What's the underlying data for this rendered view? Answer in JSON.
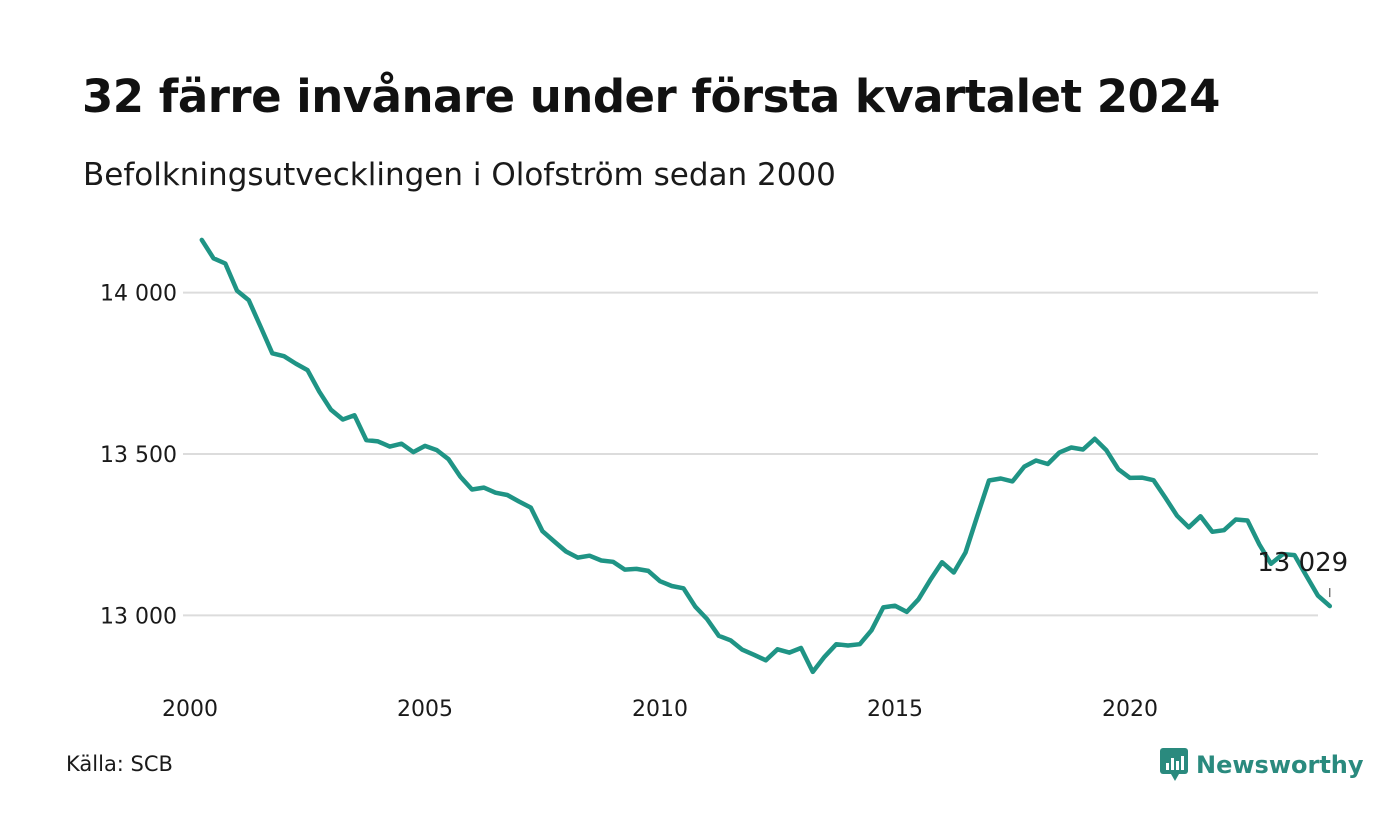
{
  "title": "32 färre invånare under första kvartalet 2024",
  "subtitle": "Befolkningsutvecklingen i Olofström sedan 2000",
  "source": "Källa: SCB",
  "brand": {
    "name": "Newsworthy",
    "icon": "newsworthy-logo-icon",
    "color": "#2a8a7e"
  },
  "chart_data": {
    "type": "line",
    "title": "32 färre invånare under första kvartalet 2024",
    "subtitle": "Befolkningsutvecklingen i Olofström sedan 2000",
    "xlabel": "",
    "ylabel": "",
    "xlim": [
      2000,
      2024
    ],
    "ylim": [
      12800,
      14200
    ],
    "x_ticks": [
      2000,
      2005,
      2010,
      2015,
      2020
    ],
    "x_tick_labels": [
      "2000",
      "2005",
      "2010",
      "2015",
      "2020"
    ],
    "y_ticks": [
      13000,
      13500,
      14000
    ],
    "y_tick_labels": [
      "13 000",
      "13 500",
      "14 000"
    ],
    "grid": "horizontal",
    "legend": "none",
    "line_color": "#1f9485",
    "end_label": "13 029",
    "series": [
      {
        "x": [
          2000.25,
          2000.5,
          2000.75,
          2001.0,
          2001.25,
          2001.5,
          2001.75,
          2002.0,
          2002.25,
          2002.5,
          2002.75,
          2003.0,
          2003.25,
          2003.5,
          2003.75,
          2004.0,
          2004.25,
          2004.5,
          2004.75,
          2005.0,
          2005.25,
          2005.5,
          2005.75,
          2006.0,
          2006.25,
          2006.5,
          2006.75,
          2007.0,
          2007.25,
          2007.5,
          2007.75,
          2008.0,
          2008.25,
          2008.5,
          2008.75,
          2009.0,
          2009.25,
          2009.5,
          2009.75,
          2010.0,
          2010.25,
          2010.5,
          2010.75,
          2011.0,
          2011.25,
          2011.5,
          2011.75,
          2012.0,
          2012.25,
          2012.5,
          2012.75,
          2013.0,
          2013.25,
          2013.5,
          2013.75,
          2014.0,
          2014.25,
          2014.5,
          2014.75,
          2015.0,
          2015.25,
          2015.5,
          2015.75,
          2016.0,
          2016.25,
          2016.5,
          2016.75,
          2017.0,
          2017.25,
          2017.5,
          2017.75,
          2018.0,
          2018.25,
          2018.5,
          2018.75,
          2019.0,
          2019.25,
          2019.5,
          2019.75,
          2020.0,
          2020.25,
          2020.5,
          2020.75,
          2021.0,
          2021.25,
          2021.5,
          2021.75,
          2022.0,
          2022.25,
          2022.5,
          2022.75,
          2023.0,
          2023.25,
          2023.5,
          2023.75,
          2024.0,
          2024.25
        ],
        "values": [
          14163,
          14106,
          14090,
          14006,
          13976,
          13895,
          13812,
          13803,
          13780,
          13760,
          13693,
          13637,
          13607,
          13620,
          13543,
          13539,
          13523,
          13532,
          13506,
          13525,
          13512,
          13484,
          13430,
          13390,
          13396,
          13380,
          13373,
          13353,
          13334,
          13261,
          13229,
          13198,
          13179,
          13185,
          13170,
          13166,
          13142,
          13144,
          13138,
          13106,
          13091,
          13084,
          13027,
          12989,
          12937,
          12923,
          12894,
          12878,
          12861,
          12895,
          12885,
          12899,
          12825,
          12872,
          12911,
          12907,
          12911,
          12954,
          13025,
          13030,
          13011,
          13050,
          13110,
          13165,
          13133,
          13195,
          13308,
          13418,
          13424,
          13415,
          13461,
          13480,
          13469,
          13505,
          13520,
          13514,
          13547,
          13511,
          13453,
          13426,
          13427,
          13419,
          13365,
          13309,
          13273,
          13307,
          13259,
          13264,
          13297,
          13294,
          13220,
          13160,
          13190,
          13187,
          13123,
          13061,
          13029
        ]
      }
    ]
  }
}
